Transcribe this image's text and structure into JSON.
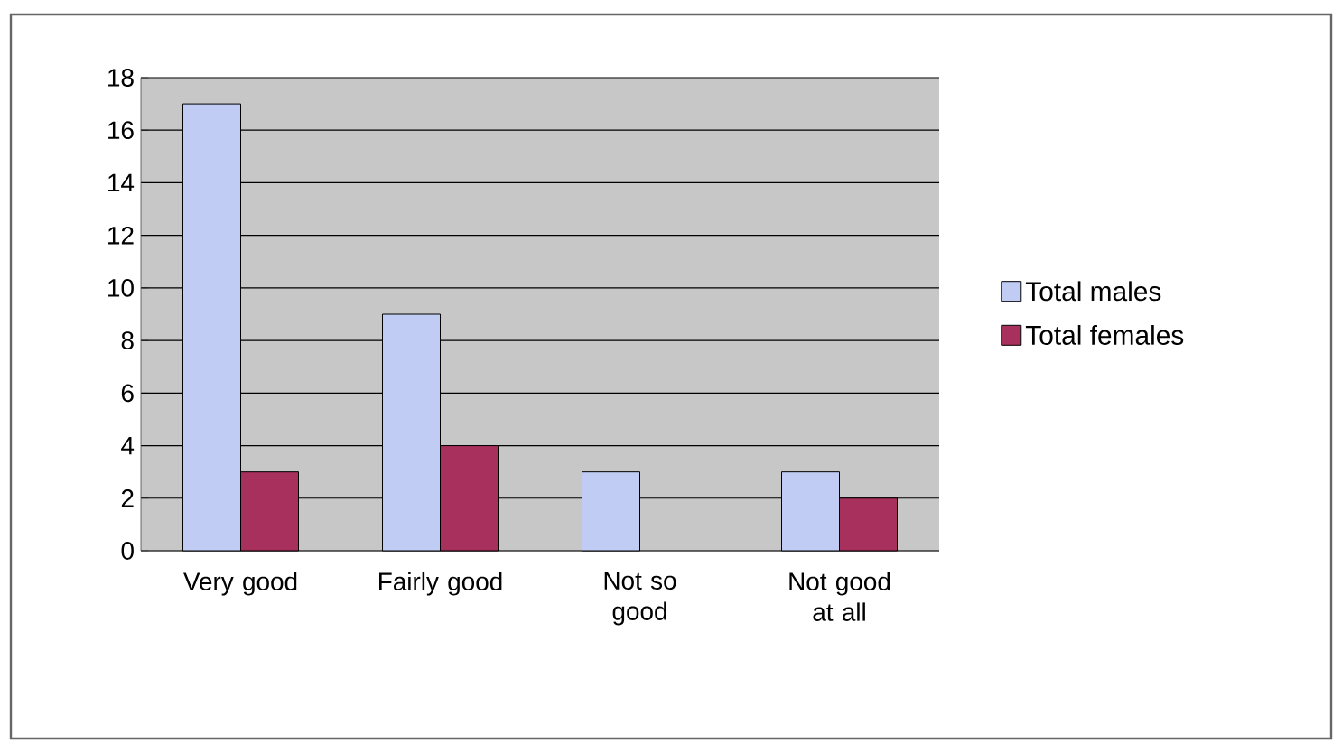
{
  "chart_data": {
    "type": "bar",
    "categories": [
      "Very good",
      "Fairly good",
      "Not so good",
      "Not good at all"
    ],
    "series": [
      {
        "name": "Total males",
        "color": "#c0ccf4",
        "values": [
          17,
          9,
          3,
          3
        ]
      },
      {
        "name": "Total females",
        "color": "#a8305c",
        "values": [
          3,
          4,
          null,
          2
        ]
      }
    ],
    "ylim": [
      0,
      18
    ],
    "yticks": [
      0,
      2,
      4,
      6,
      8,
      10,
      12,
      14,
      16,
      18
    ],
    "grid": "y",
    "legend": "right"
  }
}
